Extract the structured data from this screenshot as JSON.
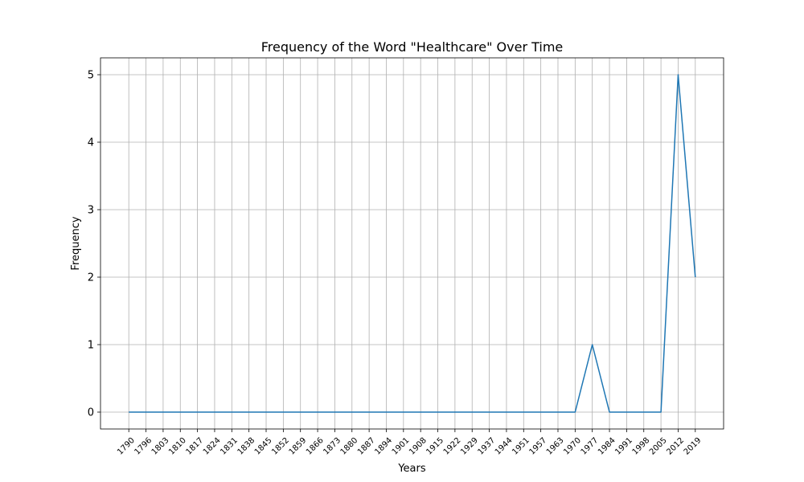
{
  "chart_data": {
    "type": "line",
    "title": "Frequency of the Word \"Healthcare\" Over Time",
    "xlabel": "Years",
    "ylabel": "Frequency",
    "categories": [
      "1790",
      "1796",
      "1803",
      "1810",
      "1817",
      "1824",
      "1831",
      "1838",
      "1845",
      "1852",
      "1859",
      "1866",
      "1873",
      "1880",
      "1887",
      "1894",
      "1901",
      "1908",
      "1915",
      "1922",
      "1929",
      "1937",
      "1944",
      "1951",
      "1957",
      "1963",
      "1970",
      "1977",
      "1984",
      "1991",
      "1998",
      "2005",
      "2012",
      "2019"
    ],
    "series": [
      {
        "color": "#1f77b4",
        "values": [
          0,
          0,
          0,
          0,
          0,
          0,
          0,
          0,
          0,
          0,
          0,
          0,
          0,
          0,
          0,
          0,
          0,
          0,
          0,
          0,
          0,
          0,
          0,
          0,
          0,
          0,
          0,
          1,
          0,
          0,
          0,
          0,
          5,
          2
        ]
      }
    ],
    "yticks": [
      0,
      1,
      2,
      3,
      4,
      5
    ],
    "ylim": [
      -0.25,
      5.25
    ],
    "grid": true,
    "legend": "none"
  }
}
